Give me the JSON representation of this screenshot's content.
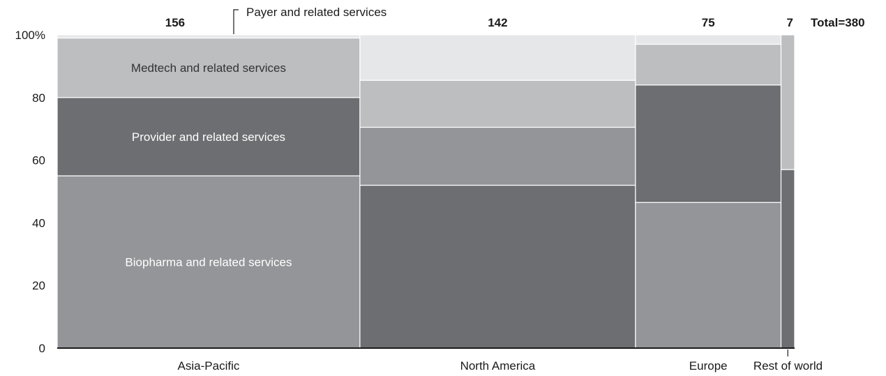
{
  "chart_data": {
    "type": "mekko",
    "title": "",
    "ylabel": "",
    "xlabel": "",
    "ylim": [
      0,
      100
    ],
    "y_ticks": [
      "0",
      "20",
      "40",
      "60",
      "80",
      "100%"
    ],
    "grand_total_label": "Total=380",
    "categories": [
      "Asia-Pacific",
      "North America",
      "Europe",
      "Rest of world"
    ],
    "totals": [
      156,
      142,
      75,
      7
    ],
    "total_labels": [
      "156",
      "142",
      "75",
      "7"
    ],
    "series": [
      {
        "name": "Biopharma and related services",
        "color": "#939598",
        "values": [
          55,
          52,
          46.5,
          57
        ]
      },
      {
        "name": "Provider and related services",
        "color": "#6d6e71",
        "values": [
          25,
          18.5,
          37.5,
          0
        ]
      },
      {
        "name": "Medtech and related services",
        "color": "#bcbec0",
        "values": [
          19,
          15,
          13,
          43
        ]
      },
      {
        "name": "Payer and related services",
        "color": "#e6e7e8",
        "values": [
          1,
          14.5,
          3,
          0
        ]
      }
    ],
    "cell_colors": [
      [
        "#939598",
        "#6d6e71",
        "#bcbec0",
        "#e6e7e8"
      ],
      [
        "#6d6e71",
        "#939598",
        "#bcbec0",
        "#e6e7e8"
      ],
      [
        "#939598",
        "#6d6e71",
        "#bcbec0",
        "#e6e7e8"
      ],
      [
        "#6d6e71",
        "#939598",
        "#bcbec0",
        "#e6e7e8"
      ]
    ],
    "label_colors": [
      "#ffffff",
      "#ffffff",
      "#333333",
      "#1a1a1a"
    ],
    "callout_label": "Payer and related services"
  }
}
